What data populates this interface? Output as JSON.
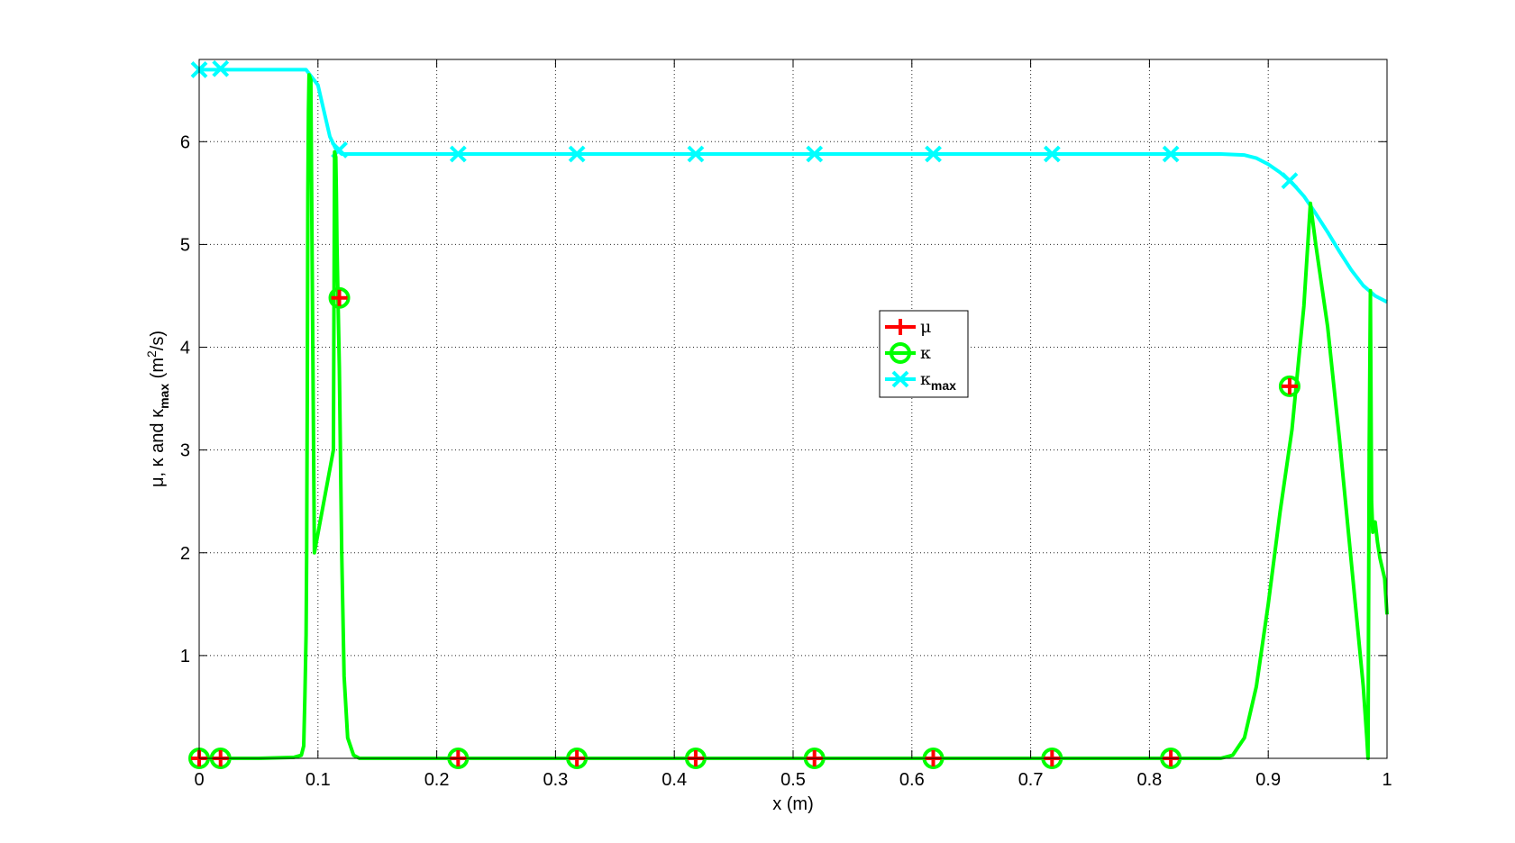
{
  "chart_data": {
    "type": "line",
    "xlabel": "x (m)",
    "ylabel": {
      "parts": [
        "μ, κ and κ",
        "max",
        " (m",
        "2",
        "/s)"
      ]
    },
    "xlim": [
      0,
      1
    ],
    "ylim": [
      0,
      6.8
    ],
    "xticks": [
      0,
      0.1,
      0.2,
      0.3,
      0.4,
      0.5,
      0.6,
      0.7,
      0.8,
      0.9,
      1
    ],
    "xtick_labels": [
      "0",
      "0.1",
      "0.2",
      "0.3",
      "0.4",
      "0.5",
      "0.6",
      "0.7",
      "0.8",
      "0.9",
      "1"
    ],
    "yticks": [
      1,
      2,
      3,
      4,
      5,
      6
    ],
    "ytick_labels": [
      "1",
      "2",
      "3",
      "4",
      "5",
      "6"
    ],
    "grid": true,
    "legend_position": "center-right",
    "series": [
      {
        "name": "μ",
        "color": "#ff0000",
        "marker": "plus",
        "x": [
          0.0,
          0.018,
          0.118,
          0.218,
          0.318,
          0.418,
          0.518,
          0.618,
          0.718,
          0.818,
          0.918
        ],
        "y": [
          0.0,
          0.0,
          4.48,
          0.0,
          0.0,
          0.0,
          0.0,
          0.0,
          0.0,
          0.0,
          3.62
        ]
      },
      {
        "name": "κ",
        "color": "#00ff00",
        "marker": "circle",
        "x": [
          0.0,
          0.02,
          0.05,
          0.08,
          0.086,
          0.088,
          0.089,
          0.09,
          0.0905,
          0.091,
          0.0915,
          0.092,
          0.0925,
          0.094,
          0.095,
          0.097,
          0.113,
          0.114,
          0.115,
          0.1155,
          0.116,
          0.118,
          0.12,
          0.122,
          0.125,
          0.13,
          0.135,
          0.14,
          0.2,
          0.3,
          0.4,
          0.5,
          0.6,
          0.7,
          0.8,
          0.86,
          0.87,
          0.88,
          0.89,
          0.9,
          0.91,
          0.92,
          0.93,
          0.9355,
          0.94,
          0.95,
          0.96,
          0.97,
          0.98,
          0.983,
          0.984,
          0.985,
          0.986,
          0.987,
          0.988,
          0.99,
          0.992,
          0.994,
          0.996,
          0.998,
          1.0
        ],
        "y": [
          0.0,
          0.0,
          0.0,
          0.01,
          0.03,
          0.12,
          0.6,
          1.2,
          2.0,
          3.5,
          5.5,
          6.3,
          6.65,
          6.6,
          5.0,
          2.0,
          3.0,
          5.9,
          5.85,
          5.5,
          5.0,
          3.8,
          2.0,
          0.8,
          0.2,
          0.03,
          0.0,
          0.0,
          0.0,
          0.0,
          0.0,
          0.0,
          0.0,
          0.0,
          0.0,
          0.0,
          0.03,
          0.2,
          0.7,
          1.5,
          2.4,
          3.2,
          4.4,
          5.4,
          5.0,
          4.2,
          3.1,
          1.9,
          0.7,
          0.2,
          0.0,
          3.0,
          4.55,
          2.5,
          2.2,
          2.3,
          2.1,
          1.95,
          1.85,
          1.75,
          1.4
        ]
      },
      {
        "name": "κmax",
        "color": "#00ffff",
        "marker": "x",
        "x": [
          0.0,
          0.02,
          0.05,
          0.08,
          0.09,
          0.1,
          0.105,
          0.11,
          0.115,
          0.118,
          0.12,
          0.13,
          0.2,
          0.3,
          0.4,
          0.5,
          0.6,
          0.7,
          0.8,
          0.86,
          0.88,
          0.89,
          0.9,
          0.91,
          0.92,
          0.93,
          0.94,
          0.95,
          0.96,
          0.97,
          0.98,
          0.99,
          1.0
        ],
        "y": [
          6.7,
          6.7,
          6.7,
          6.7,
          6.7,
          6.55,
          6.3,
          6.05,
          5.93,
          5.9,
          5.88,
          5.88,
          5.88,
          5.88,
          5.88,
          5.88,
          5.88,
          5.88,
          5.88,
          5.88,
          5.87,
          5.84,
          5.78,
          5.7,
          5.6,
          5.47,
          5.3,
          5.12,
          4.93,
          4.75,
          4.6,
          4.5,
          4.44
        ],
        "marker_x": [
          0.0,
          0.018,
          0.118,
          0.218,
          0.318,
          0.418,
          0.518,
          0.618,
          0.718,
          0.818,
          0.918
        ],
        "marker_y": [
          6.7,
          6.71,
          5.92,
          5.88,
          5.88,
          5.88,
          5.88,
          5.88,
          5.88,
          5.88,
          5.62
        ]
      }
    ]
  }
}
